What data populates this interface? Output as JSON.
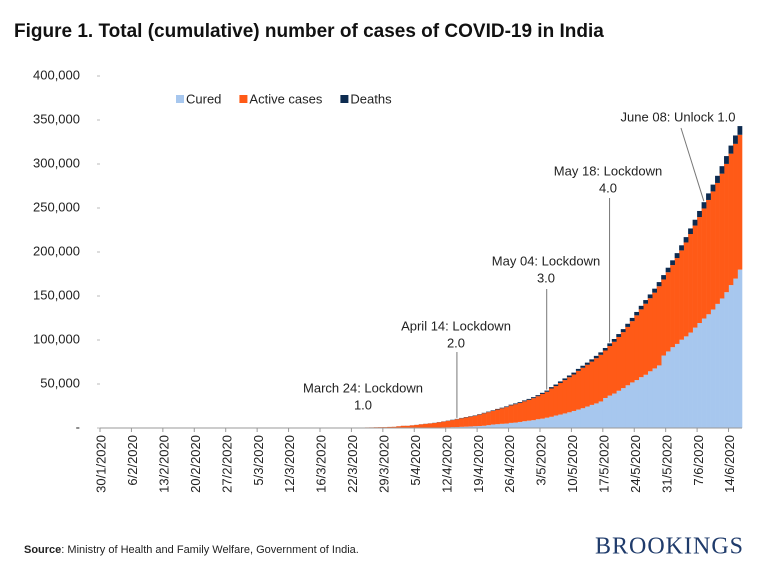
{
  "chart_data": {
    "type": "bar",
    "stacked": true,
    "title": "Figure 1. Total (cumulative) number of cases of COVID-19 in India",
    "categories": [
      "30/1/2020",
      null,
      null,
      null,
      null,
      null,
      null,
      "6/2/2020",
      null,
      null,
      null,
      null,
      null,
      null,
      "13/2/2020",
      null,
      null,
      null,
      null,
      null,
      null,
      "20/2/2020",
      null,
      null,
      null,
      null,
      null,
      null,
      "27/2/2020",
      null,
      null,
      null,
      null,
      null,
      null,
      "5/3/2020",
      null,
      null,
      null,
      null,
      null,
      null,
      "12/3/2020",
      null,
      null,
      null,
      null,
      null,
      null,
      "16/3/2020",
      null,
      null,
      null,
      null,
      null,
      null,
      "22/3/2020",
      null,
      null,
      null,
      null,
      null,
      null,
      "29/3/2020",
      null,
      null,
      null,
      null,
      null,
      null,
      "5/4/2020",
      null,
      null,
      null,
      null,
      null,
      null,
      "12/4/2020",
      null,
      null,
      null,
      null,
      null,
      null,
      "19/4/2020",
      null,
      null,
      null,
      null,
      null,
      null,
      "26/4/2020",
      null,
      null,
      null,
      null,
      null,
      null,
      "3/5/2020",
      null,
      null,
      null,
      null,
      null,
      null,
      "10/5/2020",
      null,
      null,
      null,
      null,
      null,
      null,
      "17/5/2020",
      null,
      null,
      null,
      null,
      null,
      null,
      "24/5/2020",
      null,
      null,
      null,
      null,
      null,
      null,
      "31/5/2020",
      null,
      null,
      null,
      null,
      null,
      null,
      "7/6/2020",
      null,
      null,
      null,
      null,
      null,
      null,
      "14/6/2020",
      null,
      null
    ],
    "series": [
      {
        "name": "Cured",
        "color": "#a7c7ee",
        "values": [
          0,
          0,
          0,
          0,
          0,
          0,
          0,
          0,
          0,
          0,
          0,
          0,
          0,
          0,
          0,
          0,
          3,
          3,
          3,
          3,
          3,
          3,
          3,
          3,
          3,
          3,
          3,
          3,
          3,
          3,
          3,
          3,
          3,
          3,
          3,
          3,
          3,
          3,
          3,
          3,
          3,
          3,
          4,
          4,
          10,
          10,
          13,
          13,
          14,
          14,
          15,
          20,
          23,
          23,
          24,
          27,
          27,
          36,
          40,
          42,
          66,
          75,
          86,
          95,
          100,
          102,
          150,
          170,
          190,
          230,
          275,
          319,
          353,
          411,
          473,
          516,
          653,
          765,
          980,
          1036,
          1306,
          1489,
          1749,
          2015,
          2231,
          2547,
          3252,
          3975,
          4325,
          4749,
          5063,
          5804,
          6185,
          6869,
          7696,
          8325,
          8889,
          9951,
          10633,
          11707,
          12727,
          14183,
          15267,
          16540,
          17847,
          19358,
          20917,
          22455,
          24386,
          26235,
          27920,
          30153,
          34109,
          36824,
          39174,
          42298,
          45300,
          48534,
          51784,
          54441,
          57721,
          60491,
          64426,
          67692,
          71106,
          82370,
          86984,
          91819,
          95527,
          100303,
          104107,
          108450,
          114073,
          119293,
          124430,
          129215,
          134670,
          141029,
          147195,
          154330,
          162379,
          169798,
          180013
        ]
      },
      {
        "name": "Active cases",
        "color": "#ff5a17",
        "values": [
          1,
          1,
          1,
          2,
          3,
          3,
          3,
          3,
          3,
          3,
          3,
          3,
          3,
          3,
          3,
          3,
          0,
          0,
          0,
          0,
          0,
          0,
          0,
          0,
          0,
          0,
          0,
          0,
          0,
          0,
          0,
          0,
          0,
          2,
          25,
          27,
          28,
          31,
          36,
          40,
          53,
          59,
          68,
          70,
          71,
          78,
          92,
          99,
          108,
          120,
          133,
          149,
          196,
          256,
          331,
          362,
          381,
          423,
          486,
          603,
          642,
          788,
          868,
          902,
          1119,
          1260,
          1798,
          2315,
          2305,
          2775,
          3219,
          3851,
          4312,
          4714,
          5223,
          6039,
          6634,
          7409,
          8048,
          8988,
          9756,
          10477,
          11201,
          11883,
          12974,
          14159,
          14759,
          15465,
          16694,
          17610,
          18668,
          19868,
          20821,
          21629,
          22629,
          23651,
          25007,
          26167,
          28046,
          29453,
          32138,
          33514,
          35902,
          37916,
          39834,
          41472,
          44029,
          46008,
          47480,
          49219,
          51401,
          53035,
          53946,
          56316,
          58802,
          61149,
          63624,
          66330,
          69597,
          73560,
          77103,
          80722,
          83004,
          86110,
          89987,
          86422,
          89995,
          93322,
          97581,
          101497,
          106737,
          111972,
          115942,
          120406,
          125046,
          129917,
          134168,
          137448,
          141842,
          145779,
          149348,
          153106,
          153178
        ]
      },
      {
        "name": "Deaths",
        "color": "#0d2b50",
        "values": [
          0,
          0,
          0,
          0,
          0,
          0,
          0,
          0,
          0,
          0,
          0,
          0,
          0,
          0,
          0,
          0,
          0,
          0,
          0,
          0,
          0,
          0,
          0,
          0,
          0,
          0,
          0,
          0,
          0,
          0,
          0,
          0,
          0,
          0,
          0,
          0,
          0,
          0,
          0,
          0,
          0,
          0,
          1,
          1,
          2,
          2,
          2,
          2,
          3,
          3,
          3,
          4,
          4,
          4,
          5,
          7,
          7,
          9,
          10,
          12,
          19,
          24,
          25,
          27,
          32,
          35,
          50,
          58,
          72,
          77,
          83,
          111,
          124,
          149,
          169,
          206,
          242,
          273,
          324,
          339,
          377,
          414,
          437,
          480,
          507,
          559,
          590,
          640,
          681,
          718,
          775,
          824,
          886,
          937,
          1007,
          1074,
          1147,
          1218,
          1301,
          1373,
          1568,
          1694,
          1783,
          1886,
          1981,
          2109,
          2206,
          2293,
          2415,
          2549,
          2649,
          2752,
          2872,
          3029,
          3163,
          3303,
          3435,
          3583,
          3720,
          3867,
          4021,
          4167,
          4337,
          4531,
          4706,
          4971,
          5164,
          5394,
          5598,
          5815,
          6075,
          6348,
          6642,
          6929,
          7135,
          7466,
          7745,
          8102,
          8498,
          8884,
          9195,
          9520,
          9900
        ]
      }
    ],
    "ylim": [
      0,
      400000
    ],
    "yticks": [
      {
        "value": 0,
        "label": "-"
      },
      {
        "value": 50000,
        "label": "50,000"
      },
      {
        "value": 100000,
        "label": "100,000"
      },
      {
        "value": 150000,
        "label": "150,000"
      },
      {
        "value": 200000,
        "label": "200,000"
      },
      {
        "value": 250000,
        "label": "250,000"
      },
      {
        "value": 300000,
        "label": "300,000"
      },
      {
        "value": 350000,
        "label": "350,000"
      },
      {
        "value": 400000,
        "label": "400,000"
      }
    ],
    "grid": false,
    "legend": "upper left",
    "annotations": [
      {
        "lines": [
          "March 24: Lockdown",
          "1.0"
        ]
      },
      {
        "lines": [
          "April 14: Lockdown",
          "2.0"
        ]
      },
      {
        "lines": [
          "May 04: Lockdown",
          "3.0"
        ]
      },
      {
        "lines": [
          "May 18: Lockdown",
          "4.0"
        ]
      },
      {
        "lines": [
          "June 08: Unlock 1.0"
        ]
      }
    ]
  },
  "source": {
    "label": "Source",
    "text": ": Ministry of Health and Family Welfare, Government of India."
  },
  "logo": "BROOKINGS"
}
